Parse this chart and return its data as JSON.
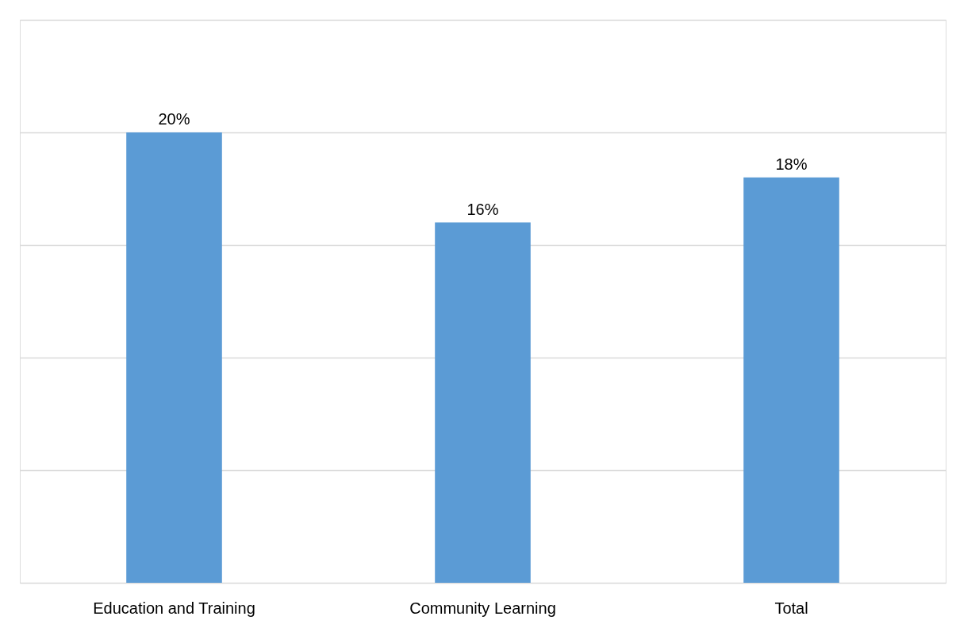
{
  "chart_data": {
    "type": "bar",
    "categories": [
      "Education and Training",
      "Community Learning",
      "Total"
    ],
    "values": [
      20,
      16,
      18
    ],
    "color": "#5b9bd5",
    "value_labels": [
      "20%",
      "16%",
      "18%"
    ],
    "ylim": [
      0,
      25
    ],
    "yticks": [
      {
        "value": 0,
        "label": null
      },
      {
        "value": 5,
        "label": null
      },
      {
        "value": 10,
        "label": null
      },
      {
        "value": 15,
        "label": null
      },
      {
        "value": 20,
        "label": null
      },
      {
        "value": 25,
        "label": null
      }
    ],
    "grid": "y",
    "tick_labels": "x"
  }
}
